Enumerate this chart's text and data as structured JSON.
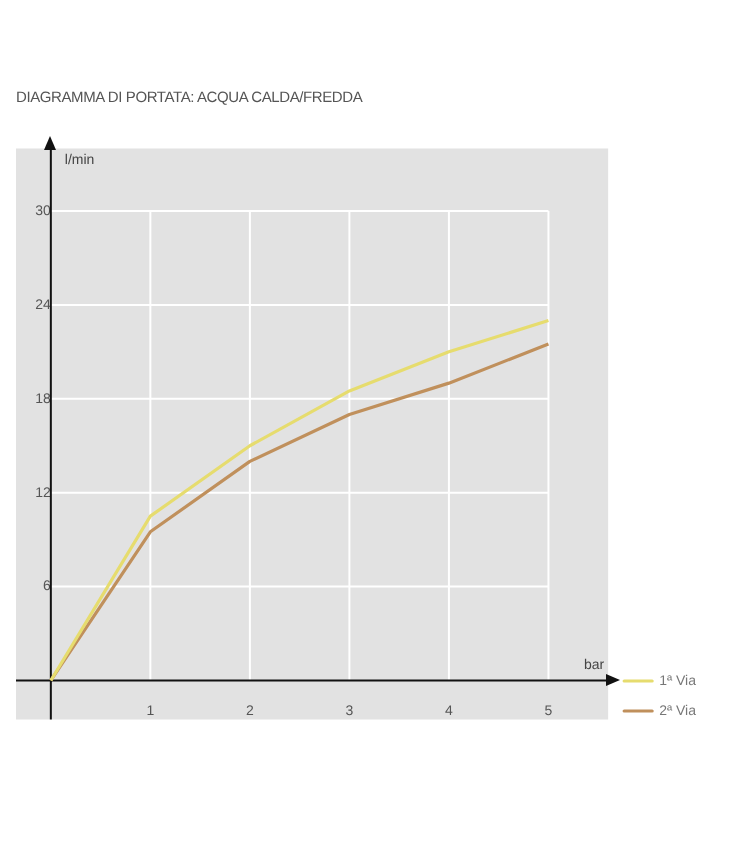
{
  "chart_data": {
    "type": "line",
    "title": "DIAGRAMMA DI PORTATA: ACQUA CALDA/FREDDA",
    "xlabel": "bar",
    "ylabel": "l/min",
    "x": [
      0,
      1,
      2,
      3,
      4,
      5
    ],
    "series": [
      {
        "name": "1ª Via",
        "color": "#e6dc6e",
        "values": [
          0,
          10.5,
          15,
          18.5,
          21,
          23
        ]
      },
      {
        "name": "2ª Via",
        "color": "#c0905c",
        "values": [
          0,
          9.5,
          14,
          17,
          19,
          21.5
        ]
      }
    ],
    "xlim": [
      -0.35,
      5.6
    ],
    "xticks": [
      1,
      2,
      3,
      4,
      5
    ],
    "ylim": [
      -2.5,
      34
    ],
    "yticks": [
      6,
      12,
      18,
      24,
      30
    ],
    "grid": true,
    "legend": "bottom right",
    "marker": "none",
    "line_style": "solid"
  }
}
